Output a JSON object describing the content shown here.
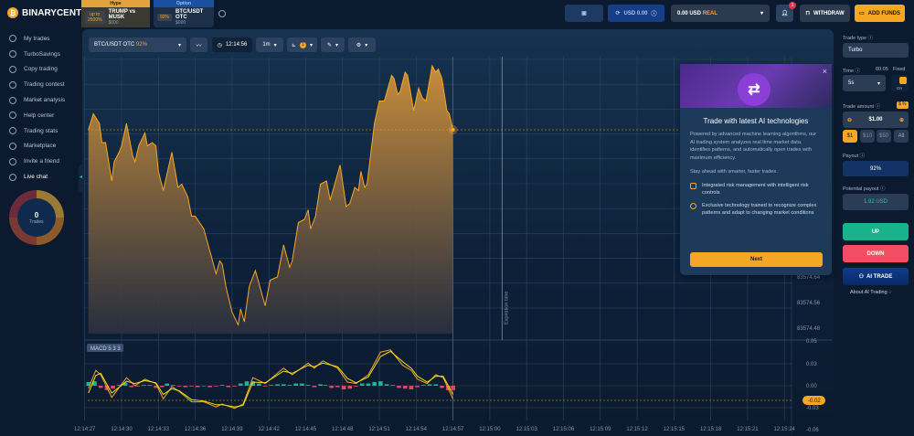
{
  "brand": {
    "name": "BINARYCENT"
  },
  "sidebar": {
    "items": [
      {
        "label": "My trades"
      },
      {
        "label": "TurboSavings"
      },
      {
        "label": "Copy trading"
      },
      {
        "label": "Trading contest"
      },
      {
        "label": "Market analysis"
      },
      {
        "label": "Help center"
      },
      {
        "label": "Trading stats"
      },
      {
        "label": "Marketplace"
      },
      {
        "label": "Invite a friend"
      },
      {
        "label": "Live chat"
      }
    ],
    "trades_count": "0",
    "trades_label": "Trades"
  },
  "header": {
    "tabs": [
      {
        "header": "Hype",
        "badge": "up to 2500%",
        "name": "TRUMP vs MUSK",
        "sub": "$000",
        "color": "#e2a33e"
      },
      {
        "header": "Option",
        "badge": "92%",
        "name": "BTC/USDT OTC",
        "sub": "$000",
        "color": "#1b4fa0"
      }
    ],
    "balance_demo": "USD 0.00",
    "account": "0.00 USD",
    "account_type": "REAL",
    "notifications": "1",
    "withdraw": "WITHDRAW",
    "add_funds": "ADD FUNDS"
  },
  "toolbar": {
    "asset": "BTC/USDT OTC",
    "asset_payout": "92%",
    "time": "12:14:56",
    "timeframe": "1m",
    "indicator_count": "1"
  },
  "chart_data": [
    {
      "type": "area",
      "asset": "BTC/USDT OTC",
      "current_price_marker": true,
      "line_color": "#f5a623",
      "y_ticks": [
        "83574.64",
        "83574.56",
        "83574.48"
      ],
      "x_ticks": [
        "12:14:27",
        "12:14:30",
        "12:14:33",
        "12:14:36",
        "12:14:39",
        "12:14:42",
        "12:14:45",
        "12:14:48",
        "12:14:51",
        "12:14:54",
        "12:14:57",
        "12:15:00",
        "12:15:03",
        "12:15:06",
        "12:15:09",
        "12:15:12",
        "12:15:15",
        "12:15:18",
        "12:15:21",
        "12:15:24"
      ],
      "expiration_label": "Expiration time",
      "expiration_time": "12:15:01",
      "points": [
        [
          "12:14:27.3",
          83575.1
        ],
        [
          "12:14:27.7",
          83575.15
        ],
        [
          "12:14:28.2",
          83575.12
        ],
        [
          "12:14:28.4",
          83575.06
        ],
        [
          "12:14:28.7",
          83575.06
        ],
        [
          "12:14:29.2",
          83574.94
        ],
        [
          "12:14:29.4",
          83575.0
        ],
        [
          "12:14:29.8",
          83575.03
        ],
        [
          "12:14:30.0",
          83575.05
        ],
        [
          "12:14:30.4",
          83575.12
        ],
        [
          "12:14:30.9",
          83575.02
        ],
        [
          "12:14:31.1",
          83575.0
        ],
        [
          "12:14:31.4",
          83575.05
        ],
        [
          "12:14:31.9",
          83575.09
        ],
        [
          "12:14:32.1",
          83575.05
        ],
        [
          "12:14:32.5",
          83575.06
        ],
        [
          "12:14:32.8",
          83575.05
        ],
        [
          "12:14:33.0",
          83574.97
        ],
        [
          "12:14:33.4",
          83574.91
        ],
        [
          "12:14:34.1",
          83575.03
        ],
        [
          "12:14:34.6",
          83574.92
        ],
        [
          "12:14:34.9",
          83574.93
        ],
        [
          "12:14:35.4",
          83574.89
        ],
        [
          "12:14:35.7",
          83574.83
        ],
        [
          "12:14:36.0",
          83574.83
        ],
        [
          "12:14:36.7",
          83574.79
        ],
        [
          "12:14:37.2",
          83574.72
        ],
        [
          "12:14:37.7",
          83574.65
        ],
        [
          "12:14:38.0",
          83574.69
        ],
        [
          "12:14:38.2",
          83574.68
        ],
        [
          "12:14:38.5",
          83574.61
        ],
        [
          "12:14:39.0",
          83574.53
        ],
        [
          "12:14:39.5",
          83574.49
        ],
        [
          "12:14:39.7",
          83574.54
        ],
        [
          "12:14:40.0",
          83574.5
        ],
        [
          "12:14:40.4",
          83574.61
        ],
        [
          "12:14:40.9",
          83574.66
        ],
        [
          "12:14:41.7",
          83574.55
        ],
        [
          "12:14:42.1",
          83574.63
        ],
        [
          "12:14:42.7",
          83574.64
        ],
        [
          "12:14:43.2",
          83574.74
        ],
        [
          "12:14:43.7",
          83574.67
        ],
        [
          "12:14:43.9",
          83574.69
        ],
        [
          "12:14:44.4",
          83574.81
        ],
        [
          "12:14:44.9",
          83574.82
        ],
        [
          "12:14:45.2",
          83574.85
        ],
        [
          "12:14:45.4",
          83574.79
        ],
        [
          "12:14:45.8",
          83574.83
        ],
        [
          "12:14:46.2",
          83574.93
        ],
        [
          "12:14:46.7",
          83574.94
        ],
        [
          "12:14:47.0",
          83574.88
        ],
        [
          "12:14:47.8",
          83574.99
        ],
        [
          "12:14:48.3",
          83574.86
        ],
        [
          "12:14:48.6",
          83574.87
        ],
        [
          "12:14:49.0",
          83574.92
        ],
        [
          "12:14:49.3",
          83574.91
        ],
        [
          "12:14:49.5",
          83574.97
        ],
        [
          "12:14:49.8",
          83574.92
        ],
        [
          "12:14:50.0",
          83574.93
        ],
        [
          "12:14:50.6",
          83575.12
        ],
        [
          "12:14:51.0",
          83575.19
        ],
        [
          "12:14:51.4",
          83575.19
        ],
        [
          "12:14:52.0",
          83575.27
        ],
        [
          "12:14:52.2",
          83575.26
        ],
        [
          "12:14:52.5",
          83575.21
        ],
        [
          "12:14:52.7",
          83575.22
        ],
        [
          "12:14:53.1",
          83575.28
        ],
        [
          "12:14:53.3",
          83575.27
        ],
        [
          "12:14:53.8",
          83575.16
        ],
        [
          "12:14:54.2",
          83575.23
        ],
        [
          "12:14:54.5",
          83575.2
        ],
        [
          "12:14:54.8",
          83575.19
        ],
        [
          "12:14:55.3",
          83575.3
        ],
        [
          "12:14:55.6",
          83575.28
        ],
        [
          "12:14:55.8",
          83575.29
        ],
        [
          "12:14:56.1",
          83575.26
        ],
        [
          "12:14:56.5",
          83575.16
        ],
        [
          "12:14:56.7",
          83575.15
        ],
        [
          "12:14:57.0",
          83575.1
        ]
      ]
    },
    {
      "type": "line",
      "title": "MACD 5 3 3",
      "y_ticks": [
        "0.05",
        "0.03",
        "0.00",
        "-0.03",
        "-0.06"
      ],
      "current_value": "-0.02",
      "series": [
        {
          "color": "#f5a623",
          "points": [
            [
              "12:14:27.3",
              -0.004
            ],
            [
              "12:14:27.9",
              0.021
            ],
            [
              "12:14:28.3",
              0.015
            ],
            [
              "12:14:29.2",
              -0.016
            ],
            [
              "12:14:30.4",
              0.011
            ],
            [
              "12:14:31.1",
              0.0
            ],
            [
              "12:14:31.9",
              0.009
            ],
            [
              "12:14:32.8",
              0.003
            ],
            [
              "12:14:33.4",
              -0.018
            ],
            [
              "12:14:34.1",
              -0.001
            ],
            [
              "12:14:34.7",
              -0.008
            ],
            [
              "12:14:35.7",
              -0.022
            ],
            [
              "12:14:36.7",
              -0.022
            ],
            [
              "12:14:37.7",
              -0.029
            ],
            [
              "12:14:38.2",
              -0.025
            ],
            [
              "12:14:39.2",
              -0.031
            ],
            [
              "12:14:39.9",
              -0.025
            ],
            [
              "12:14:40.7",
              0.011
            ],
            [
              "12:14:41.7",
              0.003
            ],
            [
              "12:14:43.2",
              0.024
            ],
            [
              "12:14:43.9",
              0.015
            ],
            [
              "12:14:45.2",
              0.031
            ],
            [
              "12:14:45.7",
              0.024
            ],
            [
              "12:14:46.4",
              0.034
            ],
            [
              "12:14:47.6",
              0.024
            ],
            [
              "12:14:48.4",
              0.005
            ],
            [
              "12:14:49.1",
              0.003
            ],
            [
              "12:14:50.1",
              0.015
            ],
            [
              "12:14:51.1",
              0.046
            ],
            [
              "12:14:51.9",
              0.049
            ],
            [
              "12:14:52.9",
              0.028
            ],
            [
              "12:14:53.6",
              0.021
            ],
            [
              "12:14:54.1",
              0.009
            ],
            [
              "12:14:54.9",
              0.003
            ],
            [
              "12:14:55.6",
              0.015
            ],
            [
              "12:14:56.2",
              0.011
            ],
            [
              "12:14:57.0",
              -0.018
            ]
          ]
        },
        {
          "color": "#f7e01a",
          "points": [
            [
              "12:14:27.3",
              -0.01
            ],
            [
              "12:14:27.9",
              0.014
            ],
            [
              "12:14:28.3",
              0.017
            ],
            [
              "12:14:29.2",
              -0.01
            ],
            [
              "12:14:30.4",
              0.006
            ],
            [
              "12:14:31.1",
              0.003
            ],
            [
              "12:14:31.9",
              0.007
            ],
            [
              "12:14:32.8",
              0.004
            ],
            [
              "12:14:33.4",
              -0.012
            ],
            [
              "12:14:34.1",
              -0.004
            ],
            [
              "12:14:34.7",
              -0.007
            ],
            [
              "12:14:35.7",
              -0.019
            ],
            [
              "12:14:36.7",
              -0.021
            ],
            [
              "12:14:37.7",
              -0.026
            ],
            [
              "12:14:38.2",
              -0.026
            ],
            [
              "12:14:39.2",
              -0.029
            ],
            [
              "12:14:39.9",
              -0.027
            ],
            [
              "12:14:40.7",
              0.005
            ],
            [
              "12:14:41.7",
              0.004
            ],
            [
              "12:14:43.2",
              0.02
            ],
            [
              "12:14:43.9",
              0.017
            ],
            [
              "12:14:45.2",
              0.028
            ],
            [
              "12:14:45.7",
              0.026
            ],
            [
              "12:14:46.4",
              0.031
            ],
            [
              "12:14:47.6",
              0.026
            ],
            [
              "12:14:48.4",
              0.01
            ],
            [
              "12:14:49.1",
              0.004
            ],
            [
              "12:14:50.1",
              0.012
            ],
            [
              "12:14:51.1",
              0.04
            ],
            [
              "12:14:51.9",
              0.047
            ],
            [
              "12:14:52.9",
              0.033
            ],
            [
              "12:14:53.6",
              0.024
            ],
            [
              "12:14:54.1",
              0.013
            ],
            [
              "12:14:54.9",
              0.005
            ],
            [
              "12:14:55.6",
              0.013
            ],
            [
              "12:14:56.2",
              0.013
            ],
            [
              "12:14:57.0",
              -0.012
            ]
          ]
        }
      ],
      "histogram": {
        "positive_color": "#1fc9a0",
        "negative_color": "#f24e63",
        "points": [
          [
            "12:14:27.3",
            0.005
          ],
          [
            "12:14:27.8",
            0.006
          ],
          [
            "12:14:28.3",
            -0.003
          ],
          [
            "12:14:28.8",
            -0.006
          ],
          [
            "12:14:29.3",
            -0.004
          ],
          [
            "12:14:29.8",
            0.001
          ],
          [
            "12:14:30.3",
            0.004
          ],
          [
            "12:14:30.8",
            -0.002
          ],
          [
            "12:14:31.3",
            -0.001
          ],
          [
            "12:14:31.8",
            0.001
          ],
          [
            "12:14:32.3",
            0.001
          ],
          [
            "12:14:32.8",
            -0.003
          ],
          [
            "12:14:33.3",
            -0.002
          ],
          [
            "12:14:33.7",
            0.003
          ],
          [
            "12:14:34.2",
            0.001
          ],
          [
            "12:14:34.7",
            -0.001
          ],
          [
            "12:14:35.2",
            -0.002
          ],
          [
            "12:14:35.7",
            -0.001
          ],
          [
            "12:14:36.2",
            -0.002
          ],
          [
            "12:14:36.7",
            0.0
          ],
          [
            "12:14:37.2",
            -0.002
          ],
          [
            "12:14:37.7",
            -0.001
          ],
          [
            "12:14:38.2",
            0.001
          ],
          [
            "12:14:38.7",
            -0.002
          ],
          [
            "12:14:39.2",
            -0.001
          ],
          [
            "12:14:39.7",
            0.003
          ],
          [
            "12:14:40.2",
            0.006
          ],
          [
            "12:14:40.7",
            0.006
          ],
          [
            "12:14:41.2",
            0.003
          ],
          [
            "12:14:41.7",
            -0.001
          ],
          [
            "12:14:42.2",
            0.001
          ],
          [
            "12:14:42.7",
            0.002
          ],
          [
            "12:14:43.2",
            0.002
          ],
          [
            "12:14:43.7",
            0.001
          ],
          [
            "12:14:44.2",
            0.003
          ],
          [
            "12:14:44.7",
            0.003
          ],
          [
            "12:14:45.2",
            0.001
          ],
          [
            "12:14:45.7",
            -0.002
          ],
          [
            "12:14:46.2",
            0.002
          ],
          [
            "12:14:46.6",
            0.001
          ],
          [
            "12:14:47.1",
            -0.003
          ],
          [
            "12:14:47.6",
            -0.002
          ],
          [
            "12:14:48.1",
            -0.005
          ],
          [
            "12:14:48.6",
            -0.004
          ],
          [
            "12:14:49.1",
            -0.001
          ],
          [
            "12:14:49.6",
            0.003
          ],
          [
            "12:14:50.1",
            0.003
          ],
          [
            "12:14:50.6",
            0.005
          ],
          [
            "12:14:51.1",
            0.006
          ],
          [
            "12:14:51.6",
            0.002
          ],
          [
            "12:14:52.1",
            0.001
          ],
          [
            "12:14:52.6",
            -0.003
          ],
          [
            "12:14:53.1",
            -0.004
          ],
          [
            "12:14:53.6",
            -0.005
          ],
          [
            "12:14:54.1",
            -0.002
          ],
          [
            "12:14:54.6",
            0.001
          ],
          [
            "12:14:55.1",
            0.002
          ],
          [
            "12:14:55.6",
            0.002
          ],
          [
            "12:14:56.1",
            -0.003
          ],
          [
            "12:14:56.6",
            -0.006
          ],
          [
            "12:14:57.0",
            -0.006
          ]
        ]
      }
    }
  ],
  "popup": {
    "title": "Trade with latest AI technologies",
    "body": "Powered by advanced machine learning algorithms, our AI trading system analyzes real time market data, identifies patterns, and automatically open trades with maximum efficiency.",
    "tagline": "Stay ahead with smarter, faster trades.",
    "features": [
      "Integrated risk management with intelligent risk controls",
      "Exclusive technology trained to recognize complex patterns and adapt to changing market conditions"
    ],
    "next": "Next"
  },
  "trade": {
    "type_label": "Trade type",
    "type": "Turbo",
    "time_label": "Time",
    "time_countdown": "00:05",
    "fixed_label": "Fixed",
    "fixed_state": "On",
    "time_value": "5s",
    "amount_label": "Trade amount",
    "amount_badge": "$",
    "amount": "$1.00",
    "presets": [
      "$1",
      "$10",
      "$50",
      "All"
    ],
    "payout_label": "Payout",
    "payout": "92%",
    "potential_label": "Potential payout",
    "potential": "1.92 USD",
    "up": "UP",
    "down": "DOWN",
    "ai_trade": "AI TRADE",
    "about_ai": "About AI Trading"
  }
}
